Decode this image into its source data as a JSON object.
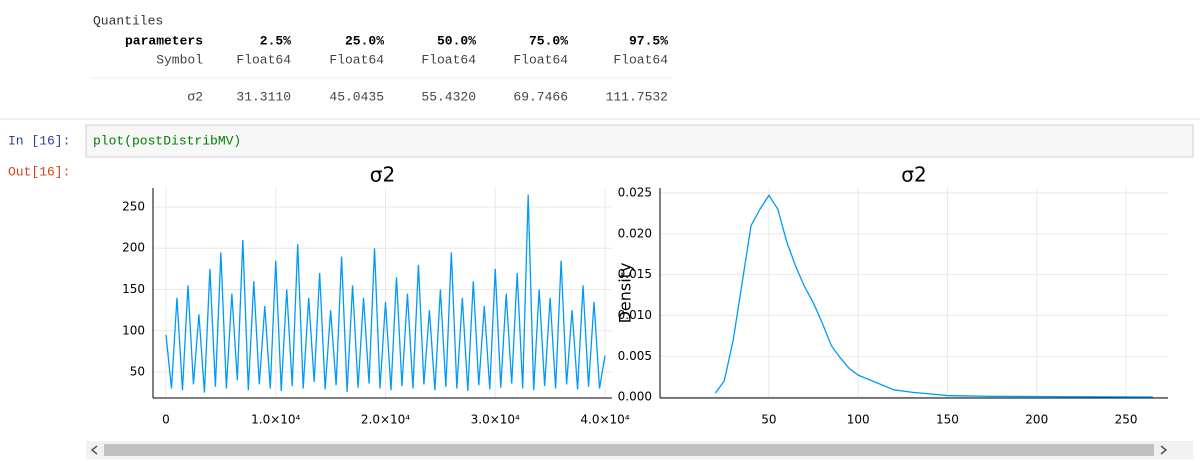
{
  "output": {
    "title": "Quantiles",
    "table": {
      "header": [
        "parameters",
        "2.5%",
        "25.0%",
        "50.0%",
        "75.0%",
        "97.5%"
      ],
      "rows": [
        [
          "Symbol",
          "Float64",
          "Float64",
          "Float64",
          "Float64",
          "Float64"
        ],
        [
          "σ2",
          "31.3110",
          "45.0435",
          "55.4320",
          "69.7466",
          "111.7532"
        ]
      ]
    }
  },
  "cell": {
    "in_prompt": "In [16]:",
    "code": "plot(postDistribMV)",
    "out_prompt": "Out[16]:"
  },
  "chart_data": [
    {
      "type": "line",
      "title": "σ2",
      "color": "#009af9",
      "grid": true,
      "xlim": [
        -1185,
        40638
      ],
      "ylim": [
        18.5,
        273
      ],
      "xticks": [
        0,
        {
          "value": 10000,
          "label": "1.0×10⁴"
        },
        {
          "value": 20000,
          "label": "2.0×10⁴"
        },
        {
          "value": 30000,
          "label": "3.0×10⁴"
        },
        {
          "value": 40000,
          "label": "4.0×10⁴"
        }
      ],
      "yticks": [
        50,
        100,
        150,
        200,
        250
      ],
      "x": [
        0,
        500,
        1000,
        1500,
        2000,
        2500,
        3000,
        3500,
        4000,
        4500,
        5000,
        5500,
        6000,
        6500,
        7000,
        7500,
        8000,
        8500,
        9000,
        9500,
        10000,
        10500,
        11000,
        11500,
        12000,
        12500,
        13000,
        13500,
        14000,
        14500,
        15000,
        15500,
        16000,
        16500,
        17000,
        17500,
        18000,
        18500,
        19000,
        19500,
        20000,
        20500,
        21000,
        21500,
        22000,
        22500,
        23000,
        23500,
        24000,
        24500,
        25000,
        25500,
        26000,
        26500,
        27000,
        27500,
        28000,
        28500,
        29000,
        29500,
        30000,
        30500,
        31000,
        31500,
        32000,
        32500,
        33000,
        33500,
        34000,
        34500,
        35000,
        35500,
        36000,
        36500,
        37000,
        37500,
        38000,
        38500,
        39000,
        39500,
        40000
      ],
      "values": [
        95,
        30,
        140,
        28,
        155,
        35,
        120,
        25,
        175,
        32,
        195,
        30,
        145,
        40,
        210,
        28,
        160,
        35,
        130,
        30,
        185,
        27,
        150,
        33,
        205,
        30,
        140,
        38,
        170,
        29,
        125,
        34,
        190,
        26,
        155,
        31,
        140,
        36,
        200,
        30,
        135,
        28,
        165,
        33,
        145,
        30,
        180,
        35,
        125,
        28,
        150,
        32,
        195,
        30,
        140,
        27,
        160,
        34,
        130,
        29,
        175,
        31,
        145,
        36,
        170,
        30,
        265,
        28,
        150,
        33,
        140,
        30,
        185,
        35,
        125,
        29,
        155,
        32,
        135,
        30,
        70
      ]
    },
    {
      "type": "line",
      "title": "σ2",
      "y_label": "Density",
      "color": "#009af9",
      "grid": true,
      "xlim": [
        -11,
        273.5
      ],
      "ylim": [
        -0.0001,
        0.0256
      ],
      "xticks": [
        50,
        100,
        150,
        200,
        250
      ],
      "yticks": [
        {
          "value": 0,
          "label": "0.000"
        },
        0.005,
        {
          "value": 0.01,
          "label": "0.010"
        },
        0.015,
        {
          "value": 0.02,
          "label": "0.020"
        },
        0.025
      ],
      "x": [
        20,
        25,
        30,
        35,
        40,
        45,
        50,
        55,
        60,
        65,
        70,
        75,
        80,
        85,
        90,
        95,
        100,
        110,
        120,
        130,
        140,
        150,
        175,
        200,
        225,
        250,
        265
      ],
      "values": [
        0.0005,
        0.002,
        0.007,
        0.014,
        0.021,
        0.023,
        0.0247,
        0.023,
        0.019,
        0.016,
        0.0135,
        0.0115,
        0.009,
        0.0063,
        0.0048,
        0.0035,
        0.0027,
        0.0018,
        0.0009,
        0.0006,
        0.0004,
        0.0002,
        0.0001,
        8e-05,
        5e-05,
        3e-05,
        2e-05
      ]
    }
  ]
}
